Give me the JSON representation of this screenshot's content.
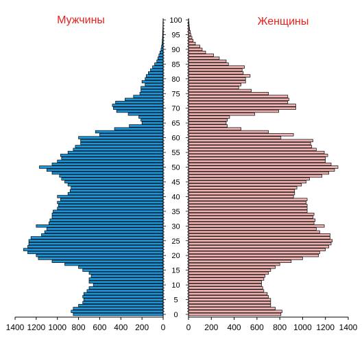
{
  "chart_data": {
    "type": "bar",
    "orientation": "horizontal",
    "layout": "population-pyramid",
    "left_title": "Мужчины",
    "right_title": "Женщины",
    "title_color": "#e8201c",
    "age_ticks": [
      "0",
      "5",
      "10",
      "15",
      "20",
      "25",
      "30",
      "35",
      "40",
      "45",
      "50",
      "55",
      "60",
      "65",
      "70",
      "75",
      "80",
      "85",
      "90",
      "95",
      "100"
    ],
    "male_axis": {
      "ticks": [
        "1400",
        "1200",
        "1000",
        "800",
        "600",
        "400",
        "200",
        "0"
      ],
      "lim": [
        0,
        1400
      ]
    },
    "female_axis": {
      "ticks": [
        "0",
        "200",
        "400",
        "600",
        "800",
        "1000",
        "1200",
        "1400"
      ],
      "lim": [
        0,
        1400
      ]
    },
    "ages": [
      0,
      1,
      2,
      3,
      4,
      5,
      6,
      7,
      8,
      9,
      10,
      11,
      12,
      13,
      14,
      15,
      16,
      17,
      18,
      19,
      20,
      21,
      22,
      23,
      24,
      25,
      26,
      27,
      28,
      29,
      30,
      31,
      32,
      33,
      34,
      35,
      36,
      37,
      38,
      39,
      40,
      41,
      42,
      43,
      44,
      45,
      46,
      47,
      48,
      49,
      50,
      51,
      52,
      53,
      54,
      55,
      56,
      57,
      58,
      59,
      60,
      61,
      62,
      63,
      64,
      65,
      66,
      67,
      68,
      69,
      70,
      71,
      72,
      73,
      74,
      75,
      76,
      77,
      78,
      79,
      80,
      81,
      82,
      83,
      84,
      85,
      86,
      87,
      88,
      89,
      90,
      91,
      92,
      93,
      94,
      95,
      96,
      97,
      98,
      99,
      100
    ],
    "series": [
      {
        "name": "Мужчины",
        "color": "#1b95d9",
        "values": [
          850,
          870,
          850,
          800,
          760,
          750,
          760,
          750,
          720,
          700,
          660,
          700,
          700,
          680,
          700,
          760,
          800,
          930,
          1050,
          1180,
          1200,
          1280,
          1320,
          1280,
          1270,
          1270,
          1250,
          1150,
          1120,
          1100,
          1200,
          1080,
          1070,
          1050,
          1050,
          1040,
          1000,
          990,
          1000,
          970,
          1000,
          900,
          880,
          870,
          900,
          930,
          960,
          980,
          1050,
          1100,
          1170,
          1050,
          1000,
          960,
          970,
          900,
          850,
          830,
          780,
          780,
          800,
          600,
          640,
          460,
          320,
          200,
          210,
          230,
          330,
          440,
          470,
          480,
          450,
          360,
          280,
          220,
          210,
          210,
          170,
          200,
          170,
          160,
          140,
          120,
          100,
          80,
          60,
          50,
          40,
          30,
          20,
          15,
          10,
          8,
          6,
          5,
          4,
          3,
          2,
          2,
          1
        ],
        "notes": "male counts per single year of age, read from left half"
      },
      {
        "name": "Женщины",
        "color": "#f0b2b0",
        "values": [
          810,
          820,
          760,
          720,
          720,
          720,
          700,
          690,
          660,
          650,
          640,
          640,
          660,
          670,
          700,
          720,
          760,
          800,
          900,
          1000,
          1140,
          1150,
          1200,
          1230,
          1250,
          1260,
          1240,
          1240,
          1150,
          1120,
          1190,
          1100,
          1110,
          1090,
          1100,
          1040,
          1040,
          1040,
          1030,
          1040,
          920,
          930,
          930,
          950,
          990,
          1030,
          1060,
          1170,
          1230,
          1280,
          1310,
          1250,
          1200,
          1200,
          1220,
          1190,
          1120,
          1080,
          1070,
          1090,
          810,
          920,
          700,
          460,
          340,
          330,
          340,
          360,
          580,
          790,
          940,
          940,
          870,
          880,
          870,
          700,
          550,
          440,
          460,
          500,
          500,
          540,
          480,
          470,
          490,
          350,
          330,
          270,
          220,
          150,
          120,
          100,
          60,
          40,
          30,
          20,
          15,
          10,
          6,
          4,
          2
        ],
        "notes": "female counts per single year of age, read from right half"
      }
    ],
    "grid": false,
    "legend": "none"
  }
}
